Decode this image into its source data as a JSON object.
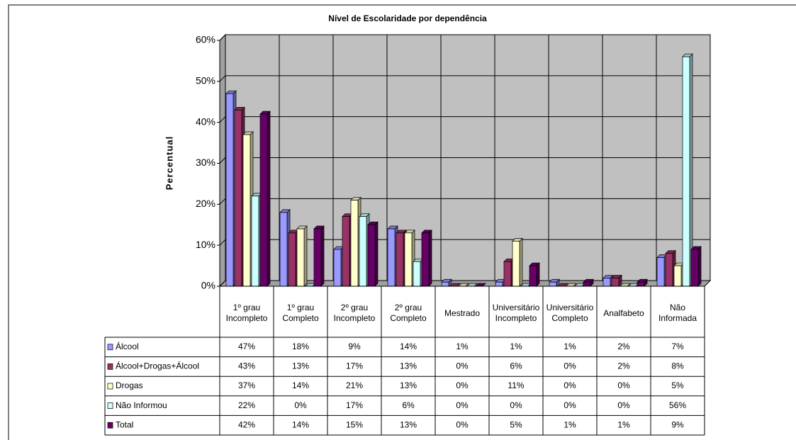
{
  "chart_data": {
    "type": "bar3d",
    "title": "Nível de Escolaridade por dependência",
    "y_label": "Percentual",
    "categories": [
      "1º grau Incompleto",
      "1º grau Completo",
      "2º grau Incompleto",
      "2º grau Completo",
      "Mestrado",
      "Universitário Incompleto",
      "Universitário Completo",
      "Analfabeto",
      "Não Informada"
    ],
    "series": [
      {
        "name": "Álcool",
        "color": "#9999ff",
        "values": [
          47,
          18,
          9,
          14,
          1,
          1,
          1,
          2,
          7
        ],
        "value_labels": [
          "47%",
          "18%",
          "9%",
          "14%",
          "1%",
          "1%",
          "1%",
          "2%",
          "7%"
        ]
      },
      {
        "name": "Álcool+Drogas+Álcool",
        "color": "#993366",
        "values": [
          43,
          13,
          17,
          13,
          0,
          6,
          0,
          2,
          8
        ],
        "value_labels": [
          "43%",
          "13%",
          "17%",
          "13%",
          "0%",
          "6%",
          "0%",
          "2%",
          "8%"
        ]
      },
      {
        "name": "Drogas",
        "color": "#ffffcc",
        "values": [
          37,
          14,
          21,
          13,
          0,
          11,
          0,
          0,
          5
        ],
        "value_labels": [
          "37%",
          "14%",
          "21%",
          "13%",
          "0%",
          "11%",
          "0%",
          "0%",
          "5%"
        ]
      },
      {
        "name": "Não Informou",
        "color": "#ccffff",
        "values": [
          22,
          0,
          17,
          6,
          0,
          0,
          0,
          0,
          56
        ],
        "value_labels": [
          "22%",
          "0%",
          "17%",
          "6%",
          "0%",
          "0%",
          "0%",
          "0%",
          "56%"
        ]
      },
      {
        "name": "Total",
        "color": "#660066",
        "values": [
          42,
          14,
          15,
          13,
          0,
          5,
          1,
          1,
          9
        ],
        "value_labels": [
          "42%",
          "14%",
          "15%",
          "13%",
          "0%",
          "5%",
          "1%",
          "1%",
          "9%"
        ]
      }
    ],
    "ylim": [
      0,
      60
    ],
    "yticks": [
      {
        "value": 0,
        "label": "0%"
      },
      {
        "value": 10,
        "label": "10%"
      },
      {
        "value": 20,
        "label": "20%"
      },
      {
        "value": 30,
        "label": "30%"
      },
      {
        "value": 40,
        "label": "40%"
      },
      {
        "value": 50,
        "label": "50%"
      },
      {
        "value": 60,
        "label": "60%"
      }
    ],
    "grid": true
  }
}
